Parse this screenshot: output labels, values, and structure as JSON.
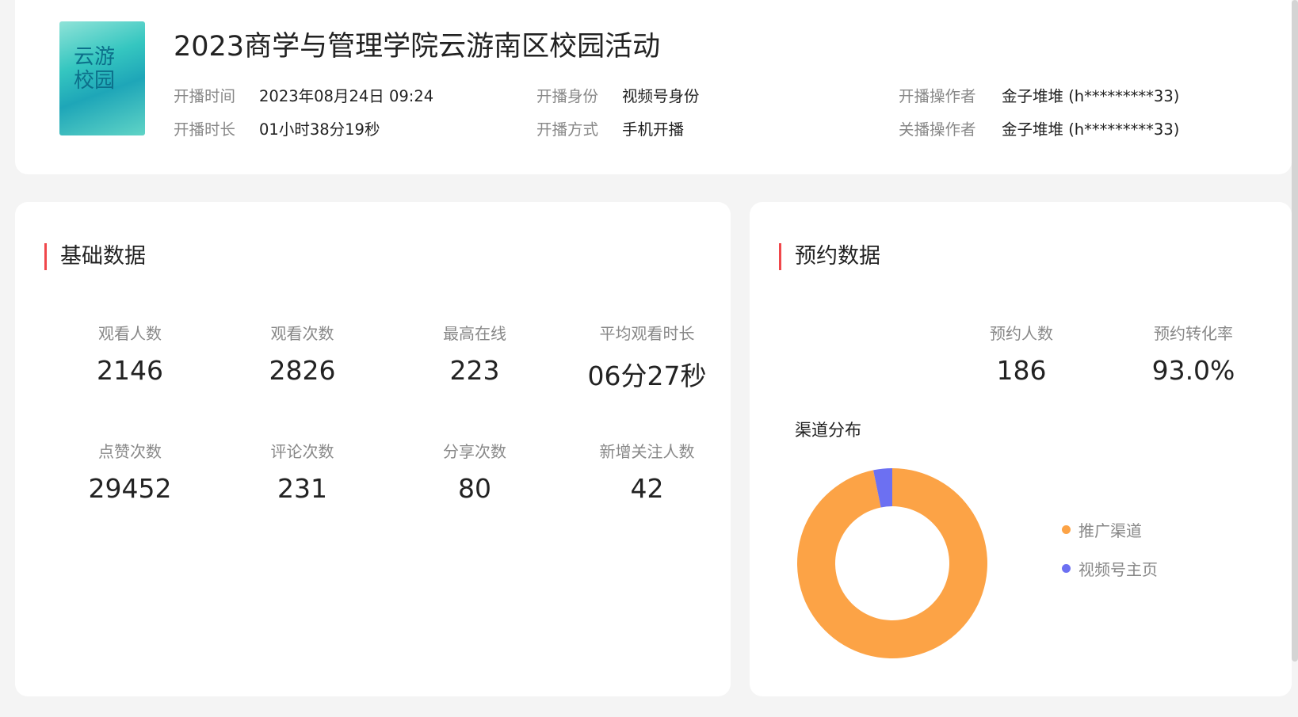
{
  "header": {
    "title": "2023商学与管理学院云游南区校园活动",
    "poster_text": "云游校园",
    "fields": [
      {
        "label": "开播时间",
        "value": "2023年08月24日 09:24"
      },
      {
        "label": "开播身份",
        "value": "视频号身份"
      },
      {
        "label": "开播操作者",
        "value": "金子堆堆 (h*********33)"
      },
      {
        "label": "开播时长",
        "value": "01小时38分19秒"
      },
      {
        "label": "开播方式",
        "value": "手机开播"
      },
      {
        "label": "关播操作者",
        "value": "金子堆堆 (h*********33)"
      }
    ]
  },
  "basic": {
    "title": "基础数据",
    "stats": [
      {
        "label": "观看人数",
        "value": "2146"
      },
      {
        "label": "观看次数",
        "value": "2826"
      },
      {
        "label": "最高在线",
        "value": "223"
      },
      {
        "label": "平均观看时长",
        "value": "06分27秒"
      },
      {
        "label": "点赞次数",
        "value": "29452"
      },
      {
        "label": "评论次数",
        "value": "231"
      },
      {
        "label": "分享次数",
        "value": "80"
      },
      {
        "label": "新增关注人数",
        "value": "42"
      }
    ]
  },
  "reservation": {
    "title": "预约数据",
    "stats": [
      {
        "label": "预约人数",
        "value": "186"
      },
      {
        "label": "预约转化率",
        "value": "93.0%"
      }
    ],
    "channel_title": "渠道分布"
  },
  "chart_data": {
    "type": "pie",
    "donut": true,
    "title": "渠道分布",
    "legend_position": "right",
    "series": [
      {
        "name": "推广渠道",
        "share": 0.968,
        "color": "#fca346"
      },
      {
        "name": "视频号主页",
        "share": 0.032,
        "color": "#6c70f2"
      }
    ]
  }
}
